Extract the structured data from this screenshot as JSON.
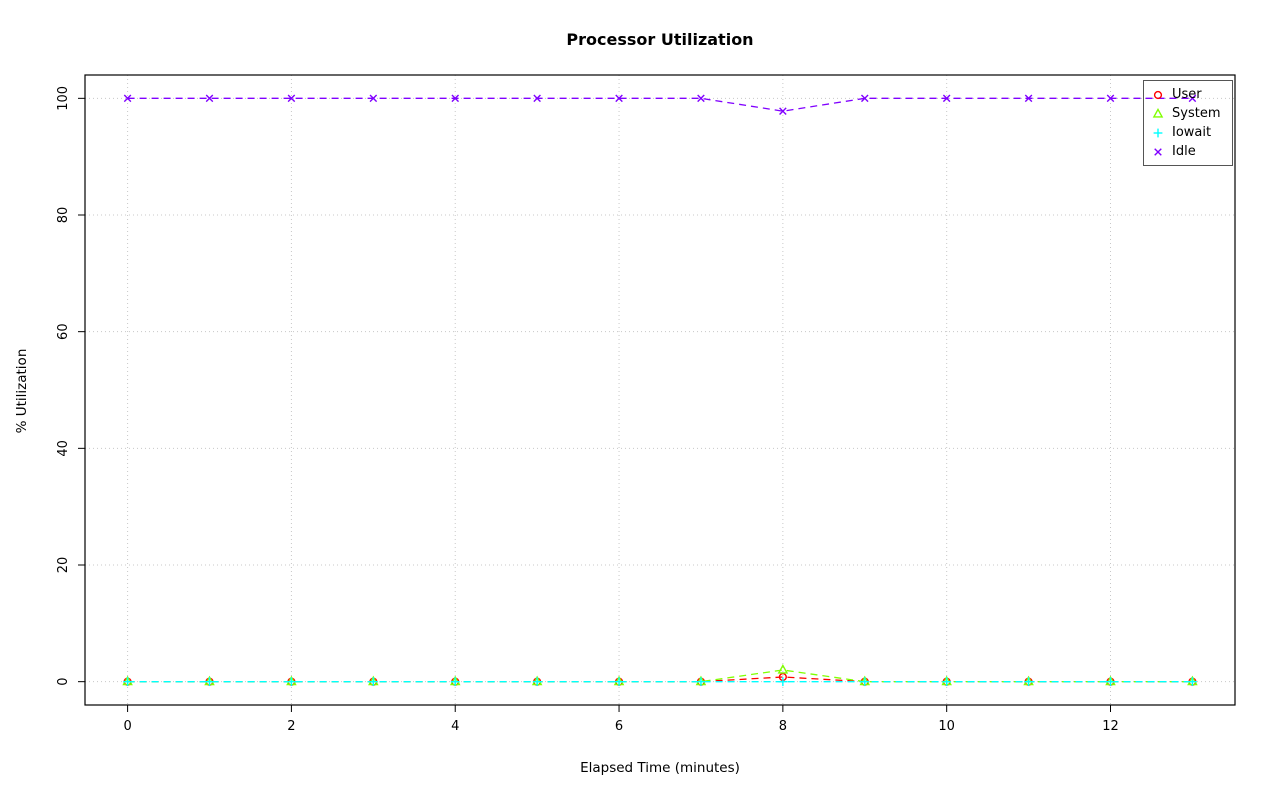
{
  "chart_data": {
    "type": "line",
    "title": "Processor Utilization",
    "xlabel": "Elapsed Time (minutes)",
    "ylabel": "% Utilization",
    "x": [
      0,
      1,
      2,
      3,
      4,
      5,
      6,
      7,
      8,
      9,
      10,
      11,
      12,
      13
    ],
    "series": [
      {
        "name": "User",
        "color": "#FF0000",
        "marker": "circle",
        "values": [
          0,
          0,
          0,
          0,
          0,
          0,
          0,
          0,
          0.8,
          0,
          0,
          0,
          0,
          0
        ]
      },
      {
        "name": "System",
        "color": "#80FF00",
        "marker": "triangle",
        "values": [
          0,
          0,
          0,
          0,
          0,
          0,
          0,
          0,
          2,
          0,
          0,
          0,
          0,
          0
        ]
      },
      {
        "name": "Iowait",
        "color": "#00FFFF",
        "marker": "plus",
        "values": [
          0,
          0,
          0,
          0,
          0,
          0,
          0,
          0,
          0,
          0,
          0,
          0,
          0,
          0
        ]
      },
      {
        "name": "Idle",
        "color": "#8000FF",
        "marker": "x",
        "values": [
          100,
          100,
          100,
          100,
          100,
          100,
          100,
          100,
          97.8,
          100,
          100,
          100,
          100,
          100
        ]
      }
    ],
    "xticks": [
      0,
      2,
      4,
      6,
      8,
      10,
      12
    ],
    "yticks": [
      0,
      20,
      40,
      60,
      80,
      100
    ],
    "xlim": [
      0,
      13
    ],
    "ylim": [
      0,
      100
    ],
    "grid": true,
    "grid_color": "#c8c8c8",
    "line_style": "dashed",
    "legend_position": "topright"
  }
}
